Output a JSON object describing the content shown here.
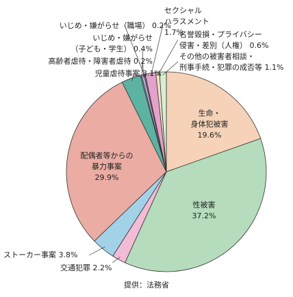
{
  "chart_data": {
    "type": "pie",
    "categories": [
      "生命・\n身体犯被害",
      "性被害",
      "交通犯罪",
      "ストーカー事案",
      "配偶者等からの\n暴力事案",
      "児童虐待事案",
      "高齢者虐待・障害者虐待",
      "いじめ・嫌がらせ\n（子ども・学生）",
      "いじめ・嫌がらせ（職場）",
      "セクシャル\nハラスメント",
      "名誉毀損・プライバシー\n侵害・差別（人権）",
      "その他の被害者相談・\n刑事手続・犯罪の成否等"
    ],
    "values": [
      19.6,
      37.2,
      2.2,
      3.8,
      29.9,
      3.1,
      0.2,
      0.4,
      0.2,
      1.7,
      0.6,
      1.1
    ],
    "value_labels": [
      "19.6%",
      "37.2%",
      "2.2%",
      "3.8%",
      "29.9%",
      "3.1%",
      "0.2%",
      "0.4%",
      "0.2%",
      "1.7%",
      "0.6%",
      "1.1%"
    ],
    "colors": [
      "#f6d2b8",
      "#b5dcbc",
      "#f2bcd6",
      "#a3d2e8",
      "#eaaca3",
      "#5cb3a2",
      "#7fa8c9",
      "#c9a8d2",
      "#4d7fa0",
      "#e4a1c9",
      "#f4e0c4",
      "#d7eed3"
    ],
    "source": "提供：法務省"
  }
}
